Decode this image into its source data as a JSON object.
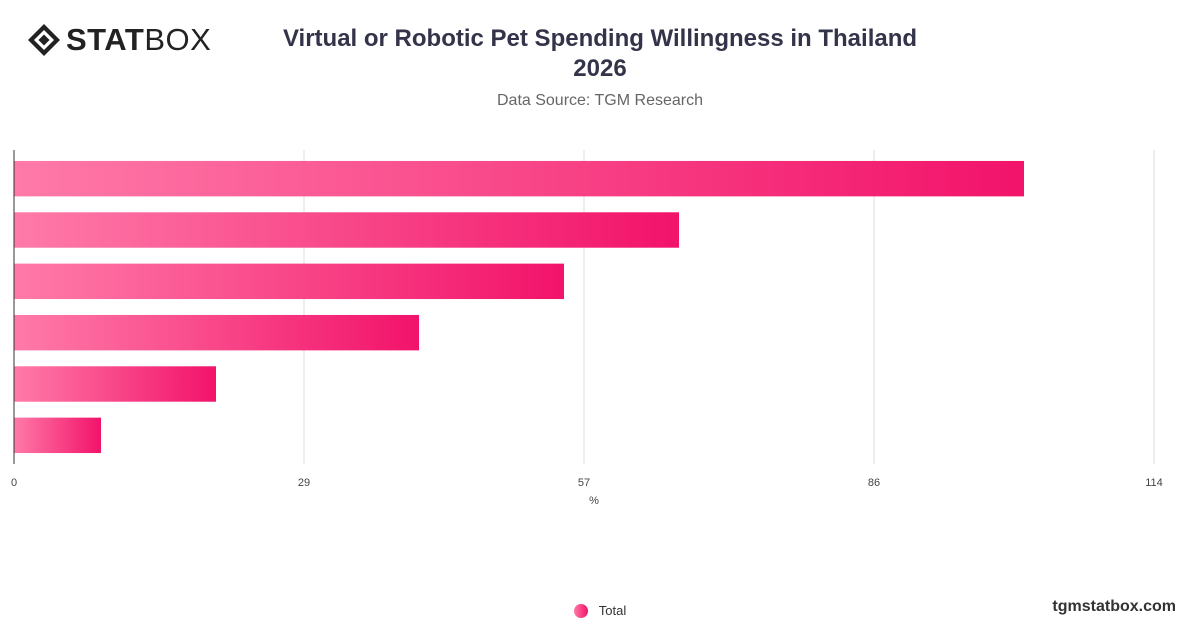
{
  "brand": {
    "logo_bold": "STAT",
    "logo_light": "BOX",
    "icon": "diamond-logo-icon",
    "watermark": "tgmstatbox.com"
  },
  "header": {
    "title_line1": "Virtual or Robotic Pet Spending Willingness in Thailand",
    "title_line2": "2026",
    "subtitle": "Data Source: TGM Research"
  },
  "chart_data": {
    "type": "bar",
    "orientation": "horizontal",
    "categories": [
      "",
      "",
      "",
      "",
      "",
      ""
    ],
    "series": [
      {
        "name": "Total",
        "values": [
          101,
          66.5,
          55,
          40.5,
          20.2,
          8.7
        ]
      }
    ],
    "xlabel": "%",
    "xticks": [
      0,
      29,
      57,
      86,
      114
    ],
    "xlim": [
      0,
      116
    ],
    "grid": true,
    "legend": "bottom-center",
    "bar_gradient": [
      "#ff7aa8",
      "#f2136a"
    ],
    "grid_color": "#dddddd",
    "axis_color": "#333333"
  },
  "legend": {
    "label": "Total"
  }
}
